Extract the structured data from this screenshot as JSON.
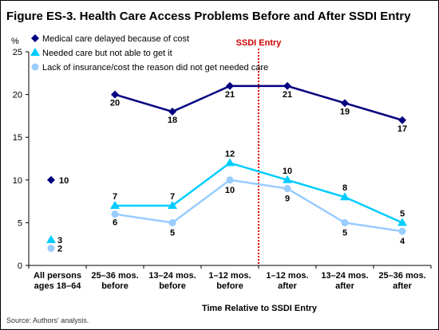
{
  "chart_data": {
    "type": "line",
    "title": "Figure ES-3. Health Care Access Problems Before and After SSDI Entry",
    "ylabel": "%",
    "xlabel": "Time Relative to SSDI Entry",
    "ylim": [
      0,
      25
    ],
    "yticks": [
      "0",
      "5",
      "10",
      "15",
      "20",
      "25"
    ],
    "categories": [
      [
        "All persons",
        "ages 18–64"
      ],
      [
        "25–36 mos.",
        "before"
      ],
      [
        "13–24 mos.",
        "before"
      ],
      [
        "1–12 mos.",
        "before"
      ],
      [
        "1–12 mos.",
        "after"
      ],
      [
        "13–24 mos.",
        "after"
      ],
      [
        "25–36 mos.",
        "after"
      ]
    ],
    "event_line": {
      "label": "SSDI Entry",
      "between": [
        3,
        4
      ]
    },
    "series": [
      {
        "name": "Medical care delayed because of cost",
        "marker": "diamond",
        "color": "#000080",
        "values": [
          10,
          20,
          18,
          21,
          21,
          19,
          17
        ],
        "labels": [
          "10",
          "20",
          "18",
          "21",
          "21",
          "19",
          "17"
        ]
      },
      {
        "name": "Needed care but not able to get it",
        "marker": "triangle",
        "color": "#00ccff",
        "values": [
          3,
          7,
          7,
          12,
          10,
          8,
          5
        ],
        "labels": [
          "3",
          "7",
          "7",
          "12",
          "10",
          "8",
          "5"
        ]
      },
      {
        "name": "Lack of insurance/cost the reason did not get needed care",
        "marker": "circle",
        "color": "#99ccff",
        "values": [
          2,
          6,
          5,
          10,
          9,
          5,
          4
        ],
        "labels": [
          "2",
          "6",
          "5",
          "10",
          "9",
          "5",
          "4"
        ]
      }
    ],
    "grid": false,
    "legend": "top-left"
  },
  "source": "Source: Authors' analysis."
}
